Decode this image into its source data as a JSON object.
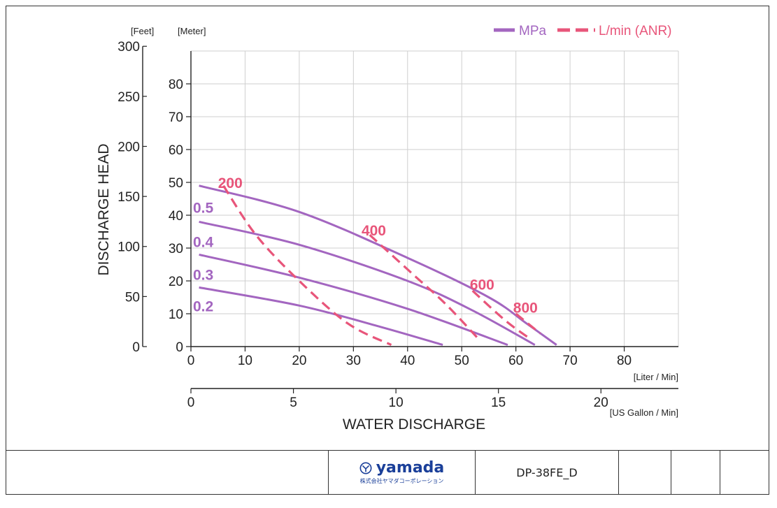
{
  "footer": {
    "logo_text": "yamada",
    "logo_subtext": "株式会社ヤマダコーポレーション",
    "model": "DP-38FE_D"
  },
  "chart_data": {
    "type": "line",
    "title": "",
    "ylabel": "DISCHARGE HEAD",
    "xlabel": "WATER DISCHARGE",
    "y_units": {
      "feet": "[Feet]",
      "meter": "[Meter]"
    },
    "x_units": {
      "liter": "[Liter / Min]",
      "gallon": "[US Gallon / Min]"
    },
    "y_meter_ticks": [
      0,
      10,
      20,
      30,
      40,
      50,
      60,
      70,
      80
    ],
    "y_feet_ticks": [
      0,
      50,
      100,
      150,
      200,
      250,
      300
    ],
    "x_liter_ticks": [
      0,
      10,
      20,
      30,
      40,
      50,
      60,
      70,
      80
    ],
    "x_gallon_ticks": [
      0,
      5,
      10,
      15,
      20
    ],
    "xlim": [
      0,
      90
    ],
    "ylim": [
      0,
      90
    ],
    "grid": true,
    "legend": {
      "position": "top-right",
      "items": [
        {
          "label": "MPa",
          "style": "solid",
          "color": "#a366c0"
        },
        {
          "label": "L/min (ANR)",
          "style": "dashed",
          "color": "#e8557a"
        }
      ]
    },
    "colors": {
      "pressure": "#a366c0",
      "air": "#e8557a",
      "grid": "#cfcfcf"
    },
    "series": [
      {
        "name": "0.5",
        "group": "MPa",
        "x": [
          1.5,
          20,
          40,
          55,
          62,
          67.5
        ],
        "y": [
          49,
          41,
          27,
          15,
          7,
          0.5
        ]
      },
      {
        "name": "0.4",
        "group": "MPa",
        "x": [
          1.5,
          20,
          40,
          52,
          63.5
        ],
        "y": [
          38,
          31,
          20,
          11,
          0.5
        ]
      },
      {
        "name": "0.3",
        "group": "MPa",
        "x": [
          1.5,
          20,
          40,
          58.5
        ],
        "y": [
          28,
          21,
          11.5,
          0.5
        ]
      },
      {
        "name": "0.2",
        "group": "MPa",
        "x": [
          1.5,
          20,
          35,
          46.5
        ],
        "y": [
          18,
          12.5,
          6,
          0.5
        ]
      },
      {
        "name": "200",
        "group": "L/min (ANR)",
        "x": [
          6,
          12,
          20,
          29,
          37
        ],
        "y": [
          49,
          34,
          20,
          7,
          0.5
        ]
      },
      {
        "name": "400",
        "group": "L/min (ANR)",
        "x": [
          33,
          41,
          47,
          53
        ],
        "y": [
          34,
          22,
          13,
          2.5
        ]
      },
      {
        "name": "600",
        "group": "L/min (ANR)",
        "x": [
          52,
          58,
          62.5
        ],
        "y": [
          17,
          8,
          2.5
        ]
      },
      {
        "name": "800",
        "group": "L/min (ANR)",
        "x": [
          60,
          64.5
        ],
        "y": [
          10,
          4
        ]
      }
    ],
    "series_labels": [
      {
        "text": "0.5",
        "group": "MPa",
        "x": -1,
        "y": 42.5
      },
      {
        "text": "0.4",
        "group": "MPa",
        "x": -1,
        "y": 32
      },
      {
        "text": "0.3",
        "group": "MPa",
        "x": -1,
        "y": 22
      },
      {
        "text": "0.2",
        "group": "MPa",
        "x": -1,
        "y": 12.5
      },
      {
        "text": "200",
        "group": "L/min (ANR)",
        "x": 5,
        "y": 50
      },
      {
        "text": "400",
        "group": "L/min (ANR)",
        "x": 31.5,
        "y": 35.5
      },
      {
        "text": "600",
        "group": "L/min (ANR)",
        "x": 51.5,
        "y": 19
      },
      {
        "text": "800",
        "group": "L/min (ANR)",
        "x": 59.5,
        "y": 12
      }
    ]
  }
}
